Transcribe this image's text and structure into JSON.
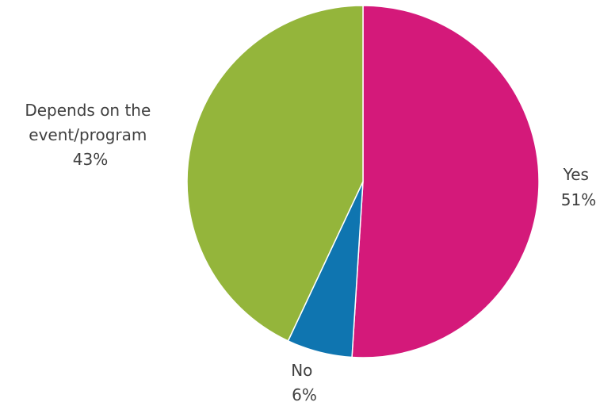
{
  "chart_data": {
    "type": "pie",
    "title": "",
    "slices": [
      {
        "label": "Yes",
        "value": 51,
        "value_label": "51%",
        "color": "#d4197a"
      },
      {
        "label": "No",
        "value": 6,
        "value_label": "6%",
        "color": "#0f75b0"
      },
      {
        "label": "Depends on the event/program",
        "value": 43,
        "value_label": "43%",
        "color": "#94b53b"
      }
    ],
    "start": "12 o'clock",
    "direction": "clockwise",
    "legend": "none"
  }
}
